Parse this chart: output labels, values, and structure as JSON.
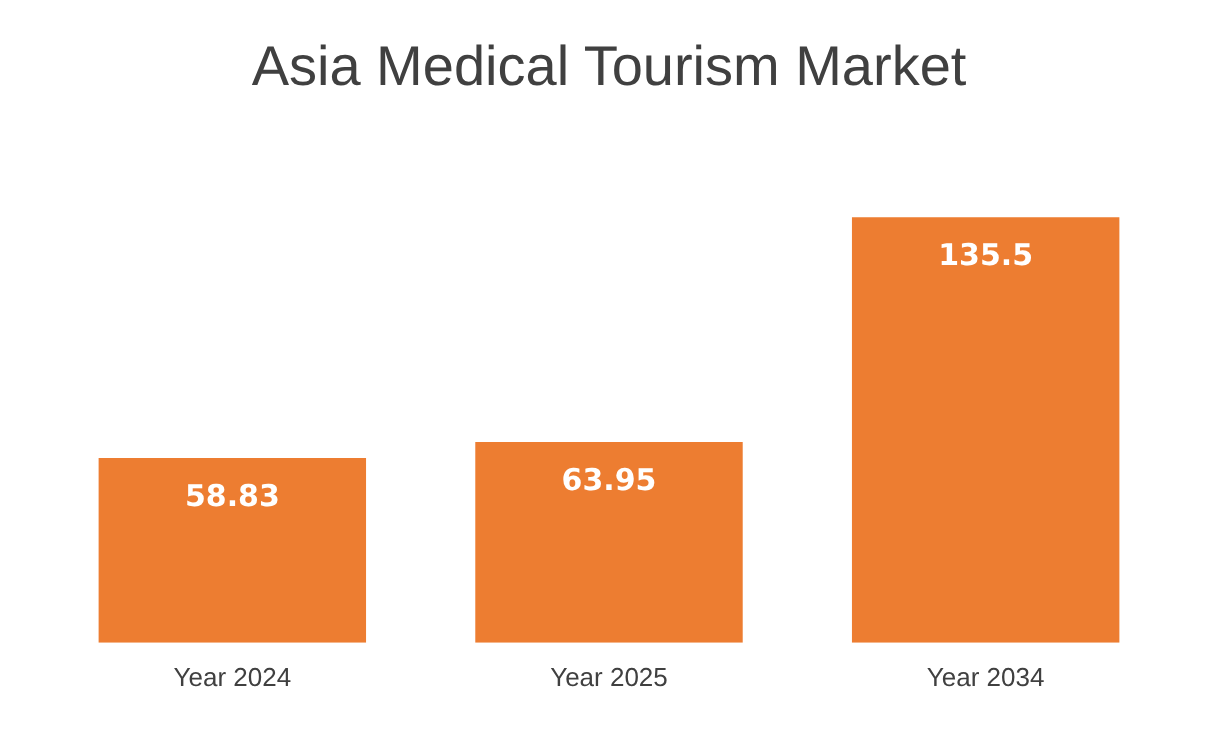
{
  "chart_data": {
    "type": "bar",
    "title": "Asia Medical Tourism Market",
    "categories": [
      "Year 2024",
      "Year 2025",
      "Year 2034"
    ],
    "values": [
      58.83,
      63.95,
      135.5
    ],
    "color": "#ed7d31",
    "data_labels": true,
    "grid": false,
    "legend": false
  }
}
